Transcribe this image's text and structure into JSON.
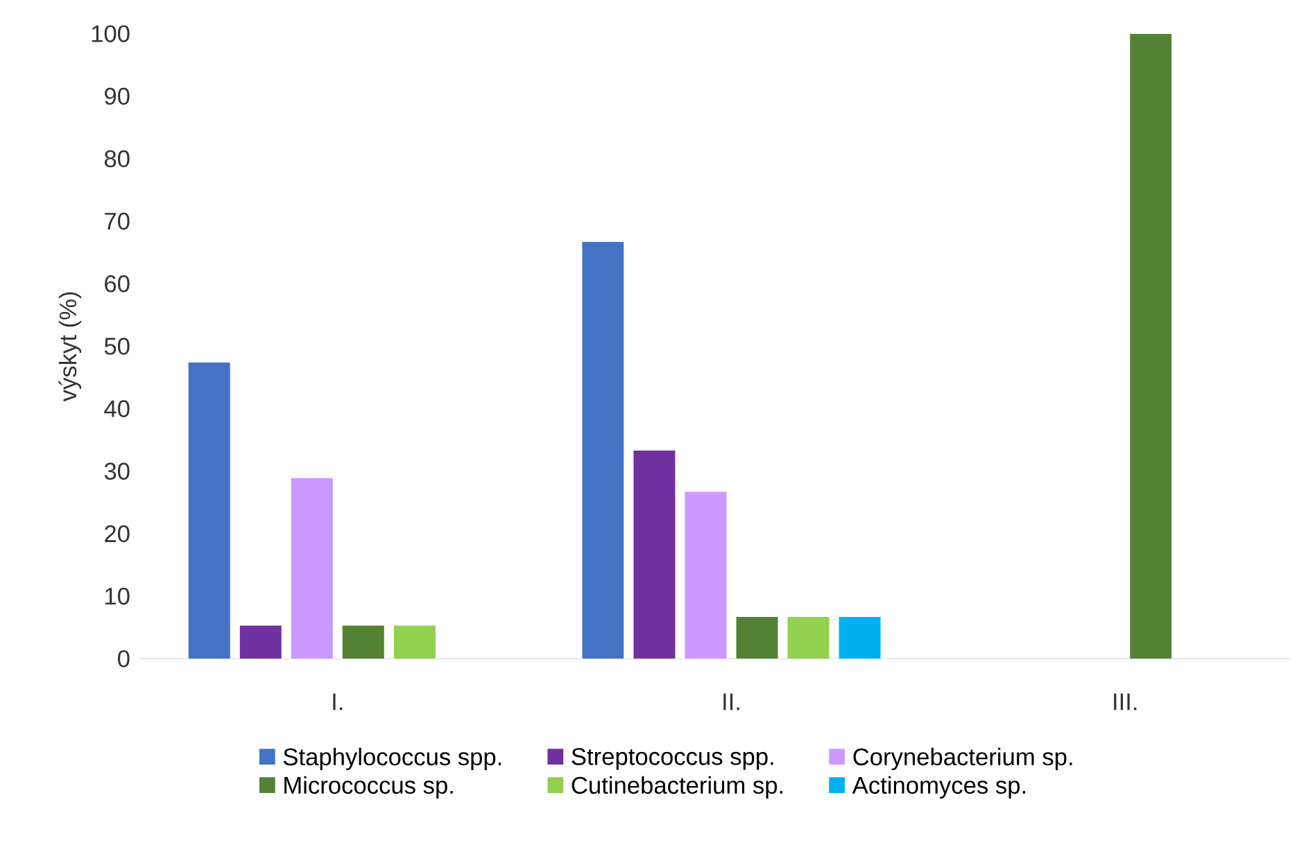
{
  "chart_data": {
    "type": "bar",
    "ylabel": "výskyt (%)",
    "categories": [
      "I.",
      "II.",
      "III."
    ],
    "series": [
      {
        "name": "Staphylococcus spp.",
        "color": "#4472c4",
        "values": [
          47.4,
          66.7,
          null
        ]
      },
      {
        "name": "Streptococcus spp.",
        "color": "#7030a0",
        "values": [
          5.3,
          33.3,
          null
        ]
      },
      {
        "name": "Corynebacterium sp.",
        "color": "#cc99ff",
        "values": [
          28.9,
          26.7,
          null
        ]
      },
      {
        "name": "Micrococcus sp.",
        "color": "#548235",
        "values": [
          5.3,
          6.7,
          100
        ]
      },
      {
        "name": "Cutinebacterium sp.",
        "color": "#92d050",
        "values": [
          5.3,
          6.7,
          null
        ]
      },
      {
        "name": "Actinomyces sp.",
        "color": "#00b0f0",
        "values": [
          null,
          6.7,
          null
        ]
      }
    ],
    "ylim": [
      0,
      100
    ],
    "yticks": [
      0,
      10,
      20,
      30,
      40,
      50,
      60,
      70,
      80,
      90,
      100
    ],
    "grid": false,
    "legend": "bottom"
  }
}
